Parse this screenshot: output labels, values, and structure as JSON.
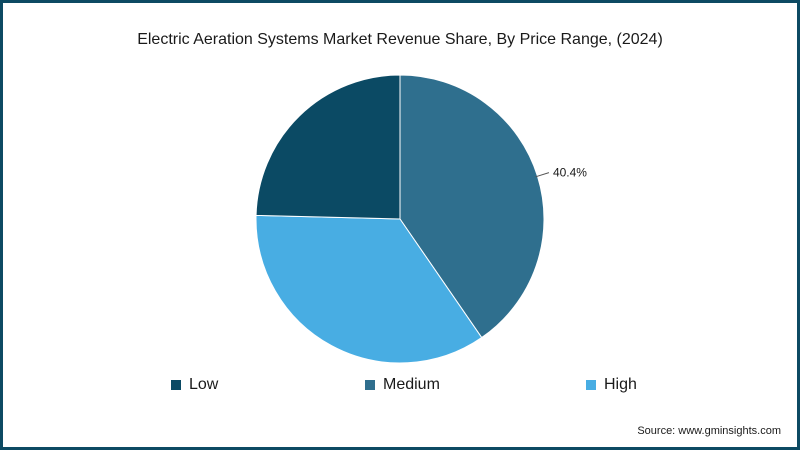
{
  "colors": {
    "border": "#0d4a63",
    "low": "#0b4a64",
    "medium": "#2f6f8e",
    "high": "#48ade3"
  },
  "chart_data": {
    "type": "pie",
    "title": "Electric Aeration Systems Market Revenue Share, By Price Range, (2024)",
    "categories": [
      "Low",
      "Medium",
      "High"
    ],
    "values": [
      24.6,
      40.4,
      35.0
    ],
    "data_labels": [
      "",
      "40.4%",
      ""
    ],
    "legend_position": "bottom",
    "source": "Source: www.gminsights.com"
  }
}
